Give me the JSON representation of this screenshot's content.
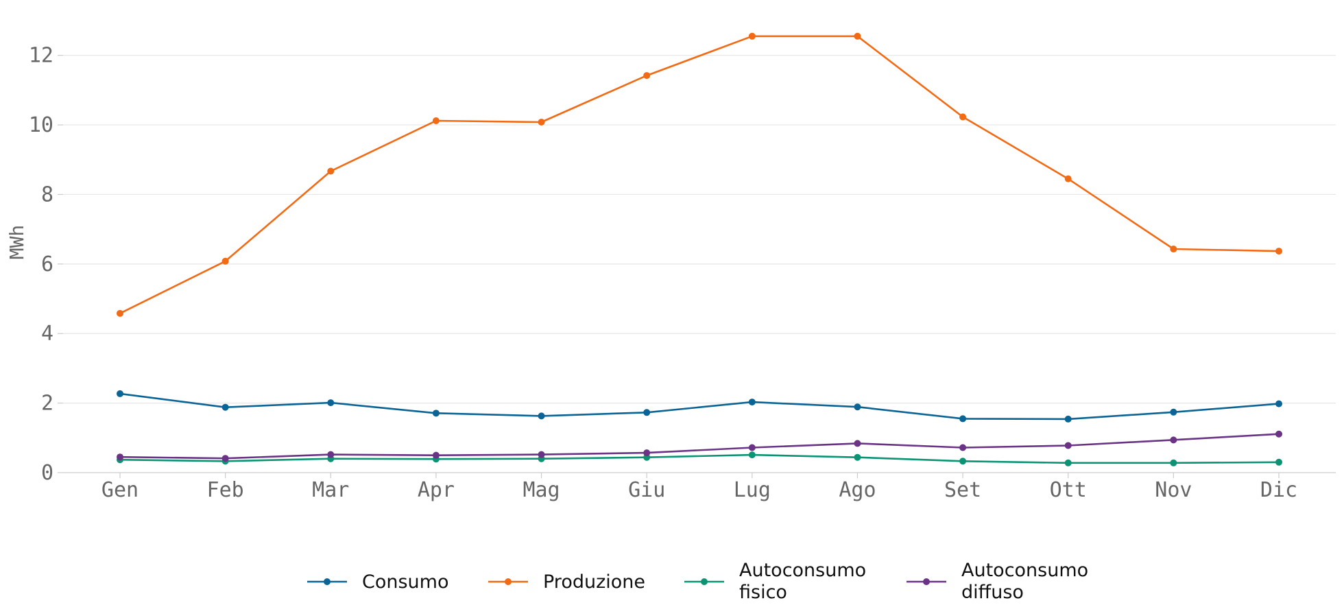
{
  "chart_data": {
    "type": "line",
    "categories": [
      "Gen",
      "Feb",
      "Mar",
      "Apr",
      "Mag",
      "Giu",
      "Lug",
      "Ago",
      "Set",
      "Ott",
      "Nov",
      "Dic"
    ],
    "ylabel": "MWh",
    "ylim": [
      0,
      13
    ],
    "yticks": [
      0,
      2,
      4,
      6,
      8,
      10,
      12
    ],
    "grid": true,
    "legend_position": "bottom",
    "series": [
      {
        "name": "Consumo",
        "color": "#0a6496",
        "values": [
          2.27,
          1.88,
          2.01,
          1.71,
          1.63,
          1.73,
          2.03,
          1.89,
          1.55,
          1.54,
          1.74,
          1.98
        ]
      },
      {
        "name": "Produzione",
        "color": "#f36a14",
        "values": [
          4.58,
          6.08,
          8.67,
          10.12,
          10.08,
          11.42,
          12.55,
          12.55,
          10.23,
          8.45,
          6.43,
          6.37
        ]
      },
      {
        "name": "Autoconsumo fisico",
        "color": "#0a9474",
        "values": [
          0.37,
          0.33,
          0.4,
          0.39,
          0.4,
          0.44,
          0.51,
          0.44,
          0.33,
          0.28,
          0.28,
          0.3
        ]
      },
      {
        "name": "Autoconsumo diffuso",
        "color": "#6a3385",
        "values": [
          0.45,
          0.41,
          0.52,
          0.5,
          0.52,
          0.57,
          0.72,
          0.84,
          0.72,
          0.78,
          0.94,
          1.11
        ]
      }
    ]
  }
}
